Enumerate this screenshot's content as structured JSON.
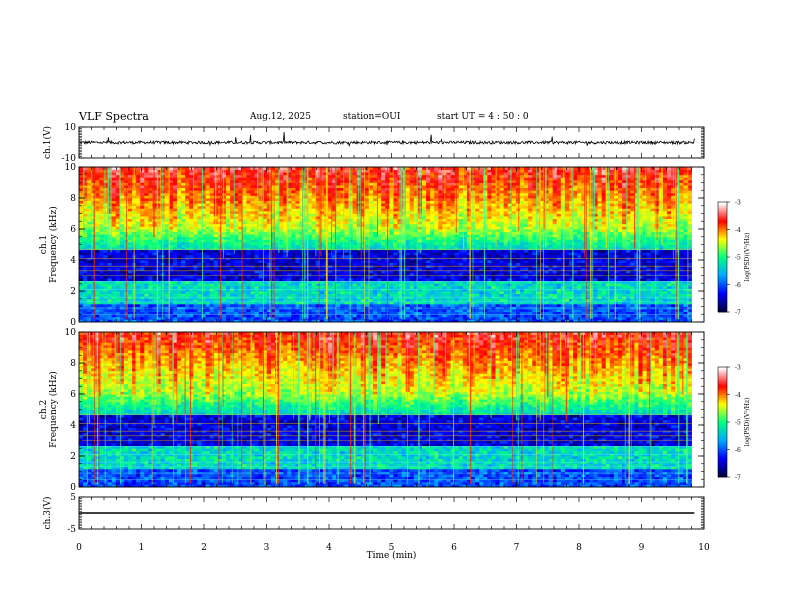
{
  "header": {
    "title": "VLF Spectra",
    "date": "Aug.12, 2025",
    "station": "station=OUI",
    "start": "start  UT =   4 : 50 : 0"
  },
  "colors": {
    "background": "#ffffff",
    "axis": "#000000",
    "colormap": [
      "#000040",
      "#0000ff",
      "#00aaff",
      "#00ff80",
      "#ffff00",
      "#ff0000",
      "#ffffff"
    ]
  },
  "chart_data": [
    {
      "type": "line",
      "name": "ch1-waveform",
      "ylabel": "ch.1(V)",
      "ylim": [
        -10,
        10
      ],
      "yticks": [
        "10",
        "-10"
      ],
      "xlim": [
        0,
        10
      ],
      "baseline": 0,
      "noise_amplitude_V": 1.2
    },
    {
      "type": "heatmap",
      "name": "ch1-spectrogram",
      "ylabel": "ch.1\nFrequency (kHz)",
      "ylabel_lines": [
        "ch.1",
        "Frequency (kHz)"
      ],
      "ylim": [
        0,
        10
      ],
      "yticks": [
        "0",
        "2",
        "4",
        "6",
        "8",
        "10"
      ],
      "xlim": [
        0,
        9.8
      ],
      "data_end_min": 9.8,
      "colorbar": {
        "label": "log(PSD)(V²/Hz)",
        "range": [
          -7,
          -3
        ],
        "ticks": [
          "-3",
          "-4",
          "-5",
          "-6",
          "-7"
        ]
      }
    },
    {
      "type": "heatmap",
      "name": "ch2-spectrogram",
      "ylabel": "ch.2\nFrequency (kHz)",
      "ylabel_lines": [
        "ch.2",
        "Frequency (kHz)"
      ],
      "ylim": [
        0,
        10
      ],
      "yticks": [
        "0",
        "2",
        "4",
        "6",
        "8",
        "10"
      ],
      "xlim": [
        0,
        9.8
      ],
      "data_end_min": 9.8,
      "colorbar": {
        "label": "log(PSD)(V²/Hz)",
        "range": [
          -7,
          -3
        ],
        "ticks": [
          "-3",
          "-4",
          "-5",
          "-6",
          "-7"
        ]
      }
    },
    {
      "type": "line",
      "name": "ch3-waveform",
      "ylabel": "ch.3(V)",
      "ylim": [
        -5,
        5
      ],
      "yticks": [
        "5",
        "-5"
      ],
      "xlim": [
        0,
        10
      ],
      "baseline": 0,
      "noise_amplitude_V": 0
    }
  ],
  "x_axis": {
    "label": "Time (min)",
    "range": [
      0,
      10
    ],
    "ticks": [
      "0",
      "1",
      "2",
      "3",
      "4",
      "5",
      "6",
      "7",
      "8",
      "9",
      "10"
    ]
  }
}
